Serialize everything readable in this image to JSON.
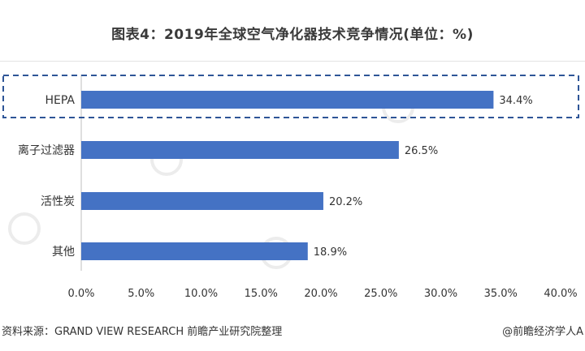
{
  "title": "图表4：2019年全球空气净化器技术竞争情况(单位：%)",
  "source": "资料来源：GRAND VIEW RESEARCH 前瞻产业研究院整理",
  "brand": "@前瞻经济学人A",
  "chart_data": {
    "type": "bar",
    "orientation": "horizontal",
    "categories": [
      "HEPA",
      "离子过滤器",
      "活性炭",
      "其他"
    ],
    "values": [
      34.4,
      26.5,
      20.2,
      18.9
    ],
    "value_labels": [
      "34.4%",
      "26.5%",
      "20.2%",
      "18.9%"
    ],
    "xlim": [
      0,
      40
    ],
    "xticks": [
      "0.0%",
      "5.0%",
      "10.0%",
      "15.0%",
      "20.0%",
      "25.0%",
      "30.0%",
      "35.0%",
      "40.0%"
    ],
    "bar_color": "#4472c4",
    "highlight": "HEPA",
    "highlight_color": "#2e5597",
    "grid": false
  }
}
